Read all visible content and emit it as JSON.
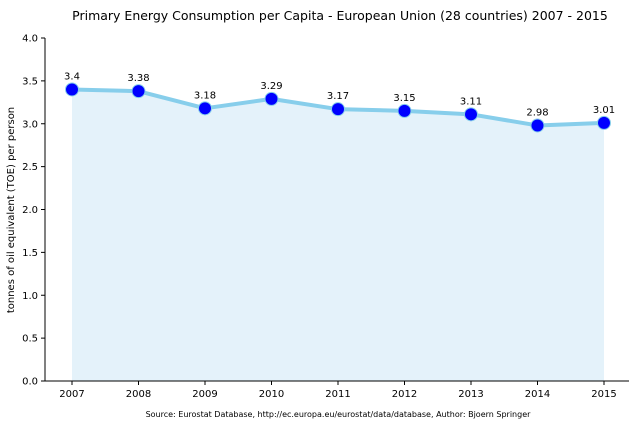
{
  "chart_data": {
    "type": "line",
    "title": "Primary Energy Consumption per Capita - European Union (28 countries) 2007 - 2015",
    "xlabel": "",
    "ylabel": "tonnes of oil equivalent (TOE) per person",
    "x": [
      2007,
      2008,
      2009,
      2010,
      2011,
      2012,
      2013,
      2014,
      2015
    ],
    "series": [
      {
        "name": "EU28 primary energy consumption per capita",
        "values": [
          3.4,
          3.38,
          3.18,
          3.29,
          3.17,
          3.15,
          3.11,
          2.98,
          3.01
        ],
        "labels": [
          "3.4",
          "3.38",
          "3.18",
          "3.29",
          "3.17",
          "3.15",
          "3.11",
          "2.98",
          "3.01"
        ]
      }
    ],
    "ylim": [
      0,
      4.0
    ],
    "yticks": [
      "0.0",
      "0.5",
      "1.0",
      "1.5",
      "2.0",
      "2.5",
      "3.0",
      "3.5",
      "4.0"
    ],
    "xticks": [
      "2007",
      "2008",
      "2009",
      "2010",
      "2011",
      "2012",
      "2013",
      "2014",
      "2015"
    ],
    "grid": false,
    "filled_area": true,
    "annotation": "Source: Eurostat Database, http://ec.europa.eu/eurostat/data/database, Author: Bjoern Springer",
    "colors": {
      "line": "#87ceeb",
      "marker": "#0000ff",
      "fill": "#e4f2fa",
      "axis": "#000000"
    }
  }
}
